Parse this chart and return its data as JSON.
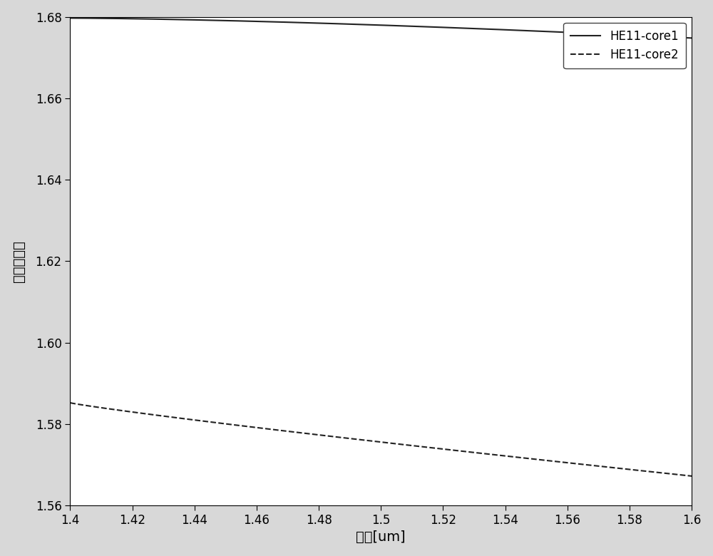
{
  "xlim": [
    1.4,
    1.6
  ],
  "ylim": [
    1.56,
    1.68
  ],
  "xticks": [
    1.4,
    1.42,
    1.44,
    1.46,
    1.48,
    1.5,
    1.52,
    1.54,
    1.56,
    1.58,
    1.6
  ],
  "yticks": [
    1.56,
    1.58,
    1.6,
    1.62,
    1.64,
    1.66,
    1.68
  ],
  "xlabel": "波长[um]",
  "ylabel": "有效折射率",
  "line1_label": "HE11-core1",
  "line2_label": "HE11-core2",
  "line1_x": [
    1.4,
    1.6
  ],
  "line1_y": [
    1.6797,
    1.6748
  ],
  "line2_x": [
    1.4,
    1.6
  ],
  "line2_y": [
    1.5852,
    1.5672
  ],
  "line_color": "#222222",
  "background_color": "#d8d8d8",
  "axes_bg_color": "#ffffff",
  "xlabel_fontsize": 14,
  "ylabel_fontsize": 14,
  "tick_fontsize": 12,
  "legend_fontsize": 12,
  "linewidth": 1.5
}
